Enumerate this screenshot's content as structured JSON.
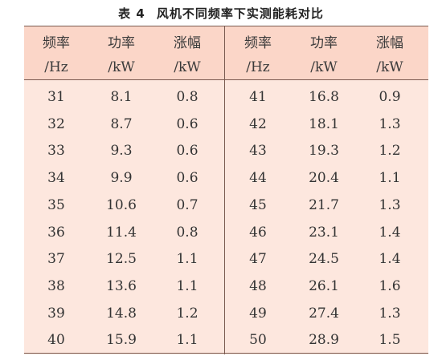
{
  "title": {
    "label": "表 4",
    "text": "风机不同频率下实测能耗对比"
  },
  "table": {
    "headers": [
      {
        "line1": "频率",
        "line2": "/Hz"
      },
      {
        "line1": "功率",
        "line2": "/kW"
      },
      {
        "line1": "涨幅",
        "line2": "/kW"
      },
      {
        "line1": "频率",
        "line2": "/Hz"
      },
      {
        "line1": "功率",
        "line2": "/kW"
      },
      {
        "line1": "涨幅",
        "line2": "/kW"
      }
    ],
    "rows": [
      [
        "31",
        "8.1",
        "0.8",
        "41",
        "16.8",
        "0.9"
      ],
      [
        "32",
        "8.7",
        "0.6",
        "42",
        "18.1",
        "1.3"
      ],
      [
        "33",
        "9.3",
        "0.6",
        "43",
        "19.3",
        "1.2"
      ],
      [
        "34",
        "9.9",
        "0.6",
        "44",
        "20.4",
        "1.1"
      ],
      [
        "35",
        "10.6",
        "0.7",
        "45",
        "21.7",
        "1.3"
      ],
      [
        "36",
        "11.4",
        "0.8",
        "46",
        "23.1",
        "1.4"
      ],
      [
        "37",
        "12.5",
        "1.1",
        "47",
        "24.5",
        "1.4"
      ],
      [
        "38",
        "13.6",
        "1.1",
        "48",
        "26.1",
        "1.6"
      ],
      [
        "39",
        "14.8",
        "1.2",
        "49",
        "27.4",
        "1.3"
      ],
      [
        "40",
        "15.9",
        "1.1",
        "50",
        "28.9",
        "1.5"
      ]
    ]
  },
  "colors": {
    "header_bg": "#fbd6c8",
    "body_bg": "#fde7de",
    "rule": "#7a5a50"
  }
}
